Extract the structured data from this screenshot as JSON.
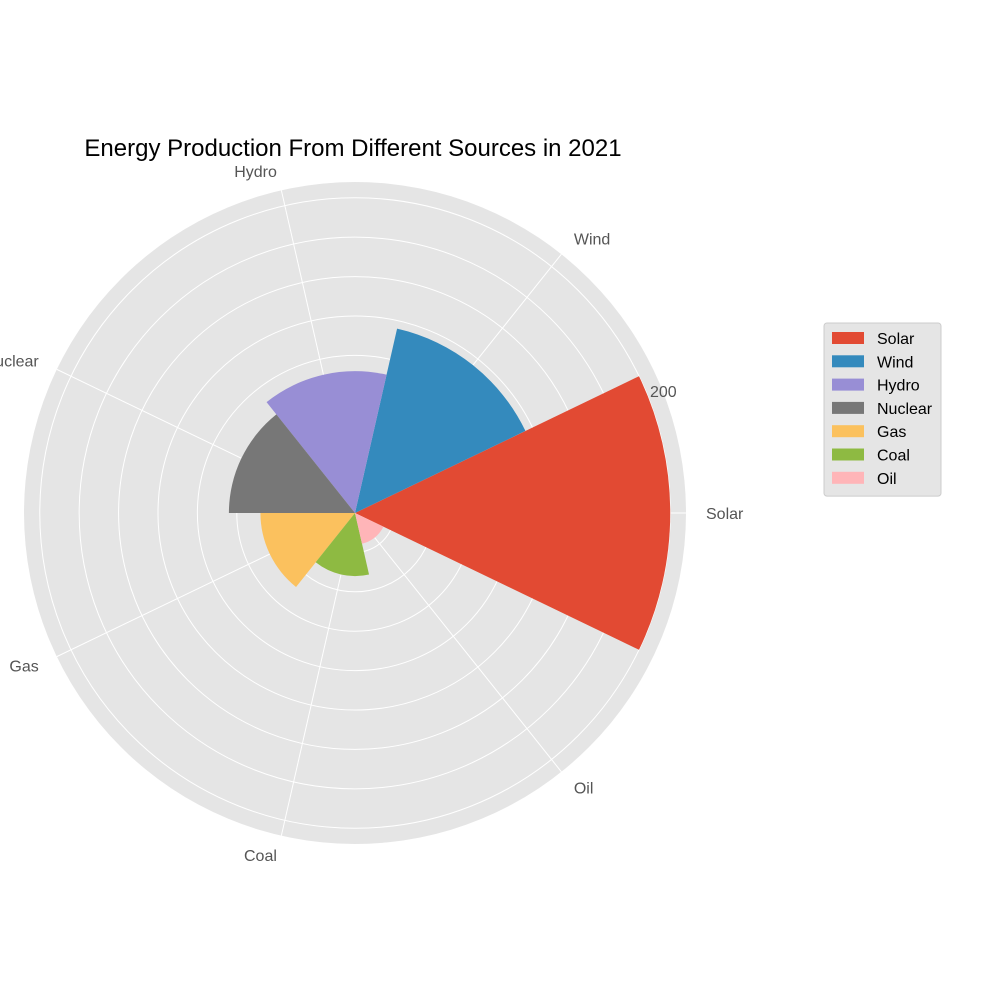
{
  "chart_data": {
    "type": "polar-bar",
    "title": "Energy Production From Different Sources in 2021",
    "categories": [
      "Solar",
      "Wind",
      "Hydro",
      "Nuclear",
      "Gas",
      "Coal",
      "Oil"
    ],
    "values": [
      200,
      120,
      90,
      80,
      60,
      40,
      20
    ],
    "colors": [
      "#E24A33",
      "#348ABD",
      "#988ED5",
      "#777777",
      "#FBC15E",
      "#8EBA42",
      "#FFB5B8"
    ],
    "rmax": 210,
    "rticks": [
      25,
      50,
      75,
      100,
      125,
      150,
      175,
      200
    ],
    "rtick_labels_shown": [
      "200"
    ],
    "legend": {
      "placement": "right",
      "entries": [
        "Solar",
        "Wind",
        "Hydro",
        "Nuclear",
        "Gas",
        "Coal",
        "Oil"
      ]
    },
    "grid": true,
    "background": "#E5E5E5"
  }
}
